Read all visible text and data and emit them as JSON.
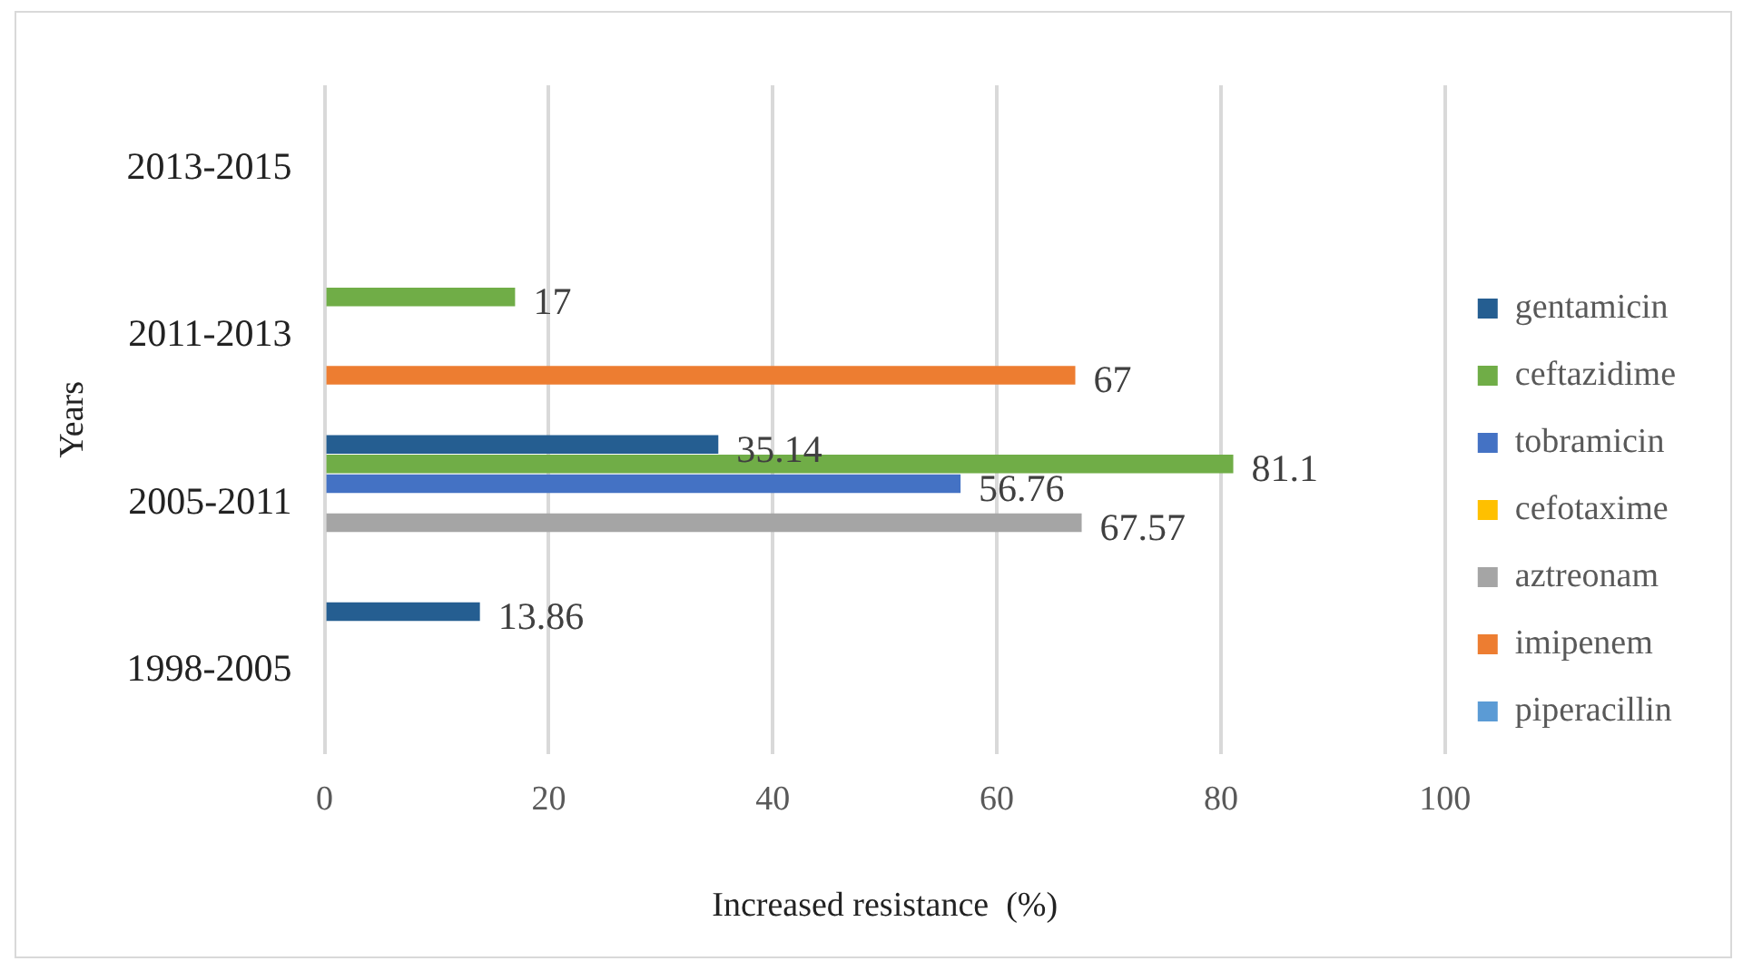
{
  "chart_data": {
    "type": "bar",
    "orientation": "horizontal",
    "xlabel": "Increased resistance  (%)",
    "ylabel": "Years",
    "categories": [
      "2013-2015",
      "2011-2013",
      "2005-2011",
      "1998-2005"
    ],
    "series": [
      {
        "name": "gentamicin",
        "color": "#255e91",
        "values": [
          0,
          0,
          35.14,
          13.86
        ],
        "value_labels": [
          null,
          null,
          "35.14",
          "13.86"
        ]
      },
      {
        "name": "ceftazidime",
        "color": "#70ad47",
        "values": [
          0,
          17,
          81.1,
          0
        ],
        "value_labels": [
          null,
          "17",
          "81.1",
          null
        ]
      },
      {
        "name": "tobramicin",
        "color": "#4472c4",
        "values": [
          0,
          0,
          56.76,
          0
        ],
        "value_labels": [
          null,
          null,
          "56.76",
          null
        ]
      },
      {
        "name": "cefotaxime",
        "color": "#ffc000",
        "values": [
          0,
          0,
          0,
          0
        ]
      },
      {
        "name": "aztreonam",
        "color": "#a5a5a5",
        "values": [
          0,
          0,
          67.57,
          0
        ],
        "value_labels": [
          null,
          null,
          "67.57",
          null
        ]
      },
      {
        "name": "imipenem",
        "color": "#ed7d31",
        "values": [
          0,
          67,
          0,
          0
        ],
        "value_labels": [
          null,
          "67",
          null,
          null
        ]
      },
      {
        "name": "piperacillin",
        "color": "#5b9bd5",
        "values": [
          0,
          0,
          0,
          0
        ]
      }
    ],
    "xlim": [
      0,
      100
    ],
    "xticks": [
      0,
      20,
      40,
      60,
      80,
      100
    ],
    "grid": "x",
    "legend": "right"
  }
}
